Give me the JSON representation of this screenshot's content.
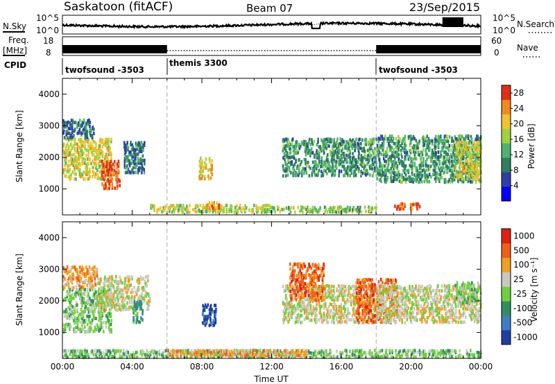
{
  "header": {
    "station": "Saskatoon (fitACF)",
    "beam": "Beam 07",
    "date": "23/Sep/2015"
  },
  "top_panels": {
    "noise_left_label": "N.Sky",
    "noise_right_label": "N.Search",
    "noise_left_ticks": [
      "10^5",
      "10^0"
    ],
    "noise_right_ticks": [
      "10^5",
      "10^0"
    ],
    "freq_label_line1": "Freq.",
    "freq_label_line2": "[MHz]",
    "freq_ticks": [
      "18",
      "8"
    ],
    "nave_label": "Nave",
    "nave_ticks": [
      "60",
      "0"
    ],
    "cpid_label": "CPID",
    "cpid_segments": [
      {
        "start_hour": 0,
        "end_hour": 6,
        "name": "twofsound -3503"
      },
      {
        "start_hour": 6,
        "end_hour": 18,
        "name": "themis 3300"
      },
      {
        "start_hour": 18,
        "end_hour": 24,
        "name": "twofsound -3503"
      }
    ]
  },
  "chart_data": [
    {
      "type": "heatmap",
      "name": "power",
      "ylabel": "Slant Range [km]",
      "xlabel": "Time UT",
      "x_ticks": [
        "00:00",
        "04:00",
        "08:00",
        "12:00",
        "16:00",
        "20:00",
        "00:00"
      ],
      "x_range_hours": [
        0,
        24
      ],
      "y_ticks": [
        1000,
        2000,
        3000,
        4000
      ],
      "ylim": [
        180,
        4500
      ],
      "colorbar_label": "Power [dB]",
      "colorbar_ticks": [
        4,
        8,
        12,
        16,
        20,
        24,
        28
      ],
      "colorbar_range": [
        0,
        30
      ],
      "colors": [
        "#0000ff",
        "#2f3fa8",
        "#2f7f5f",
        "#4fb36f",
        "#9fd23f",
        "#f2c230",
        "#f08a1e",
        "#e03018"
      ],
      "scatter_regions": [
        {
          "t": [
            0.0,
            2.8
          ],
          "r": [
            1300,
            2600
          ],
          "level": 20
        },
        {
          "t": [
            2.2,
            3.3
          ],
          "r": [
            1000,
            1900
          ],
          "level": 28
        },
        {
          "t": [
            3.5,
            4.7
          ],
          "r": [
            1500,
            2500
          ],
          "level": 10
        },
        {
          "t": [
            0.0,
            1.8
          ],
          "r": [
            2600,
            3200
          ],
          "level": 9
        },
        {
          "t": [
            7.8,
            8.6
          ],
          "r": [
            1300,
            2000
          ],
          "level": 22
        },
        {
          "t": [
            5.0,
            12.0
          ],
          "r": [
            250,
            500
          ],
          "level": 18
        },
        {
          "t": [
            8.0,
            9.0
          ],
          "r": [
            300,
            600
          ],
          "level": 26
        },
        {
          "t": [
            12.0,
            18.0
          ],
          "r": [
            250,
            450
          ],
          "level": 16
        },
        {
          "t": [
            12.6,
            18.0
          ],
          "r": [
            1400,
            2600
          ],
          "level": 12
        },
        {
          "t": [
            18.0,
            24.0
          ],
          "r": [
            1200,
            2700
          ],
          "level": 12
        },
        {
          "t": [
            19.0,
            20.5
          ],
          "r": [
            350,
            550
          ],
          "level": 28
        },
        {
          "t": [
            22.5,
            24.0
          ],
          "r": [
            1300,
            2500
          ],
          "level": 20
        }
      ]
    },
    {
      "type": "heatmap",
      "name": "velocity",
      "ylabel": "Slant Range [km]",
      "xlabel": "Time UT",
      "x_ticks": [
        "00:00",
        "04:00",
        "08:00",
        "12:00",
        "16:00",
        "20:00",
        "00:00"
      ],
      "x_range_hours": [
        0,
        24
      ],
      "y_ticks": [
        1000,
        2000,
        3000,
        4000
      ],
      "ylim": [
        180,
        4500
      ],
      "colorbar_label": "Velocity [m s⁻¹]",
      "colorbar_ticks": [
        "1000",
        "500",
        "100",
        "25",
        "-25",
        "-100",
        "-500",
        "-1000"
      ],
      "colors": [
        "#1f3fa0",
        "#3f7fc0",
        "#2f8f5f",
        "#6fd03f",
        "#c8c8c0",
        "#f0a020",
        "#f06018",
        "#e02010"
      ],
      "scatter_regions": [
        {
          "t": [
            0.0,
            2.8
          ],
          "r": [
            1000,
            2400
          ],
          "level": 3
        },
        {
          "t": [
            2.0,
            5.0
          ],
          "r": [
            1700,
            2800
          ],
          "level": 4
        },
        {
          "t": [
            0.0,
            2.0
          ],
          "r": [
            2400,
            3100
          ],
          "level": 5
        },
        {
          "t": [
            4.0,
            4.6
          ],
          "r": [
            1300,
            2000
          ],
          "level": 2
        },
        {
          "t": [
            8.0,
            8.8
          ],
          "r": [
            1200,
            1900
          ],
          "level": 0
        },
        {
          "t": [
            0.0,
            24.0
          ],
          "r": [
            200,
            450
          ],
          "level": 3
        },
        {
          "t": [
            6.0,
            14.0
          ],
          "r": [
            250,
            450
          ],
          "level": 5
        },
        {
          "t": [
            12.6,
            18.0
          ],
          "r": [
            1300,
            2500
          ],
          "level": 4
        },
        {
          "t": [
            13.0,
            15.0
          ],
          "r": [
            2000,
            3200
          ],
          "level": 6
        },
        {
          "t": [
            16.8,
            19.2
          ],
          "r": [
            1300,
            2700
          ],
          "level": 6
        },
        {
          "t": [
            18.0,
            24.0
          ],
          "r": [
            1300,
            2500
          ],
          "level": 4
        },
        {
          "t": [
            22.5,
            24.0
          ],
          "r": [
            1900,
            2600
          ],
          "level": 3
        }
      ]
    }
  ]
}
